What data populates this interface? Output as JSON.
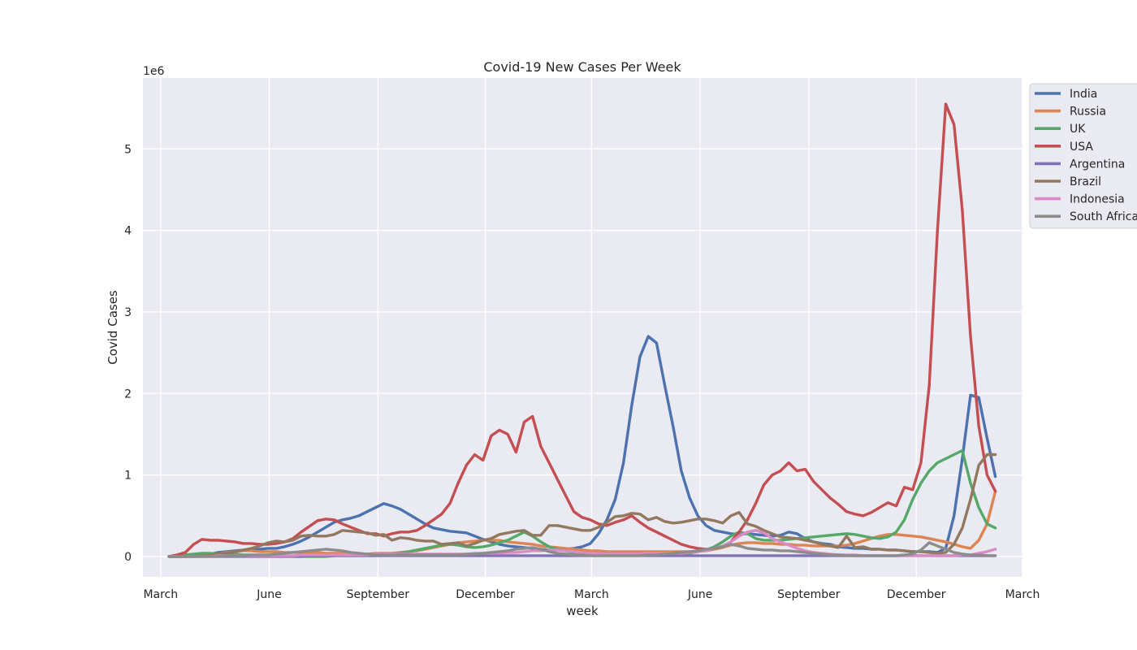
{
  "chart_data": {
    "type": "line",
    "title": "Covid-19 New Cases Per Week",
    "xlabel": "week",
    "ylabel": "Covid Cases",
    "y_multiplier": "1e6",
    "ylim": [
      -0.25,
      5.87
    ],
    "xlim": [
      "2020-02-15",
      "2022-03-01"
    ],
    "grid": true,
    "legend_position": "upper-right-outside",
    "x_ticks": [
      {
        "date": "2020-03-01",
        "label": "March"
      },
      {
        "date": "2020-06-01",
        "label": "June"
      },
      {
        "date": "2020-09-01",
        "label": "September"
      },
      {
        "date": "2020-12-01",
        "label": "December"
      },
      {
        "date": "2021-03-01",
        "label": "March"
      },
      {
        "date": "2021-06-01",
        "label": "June"
      },
      {
        "date": "2021-09-01",
        "label": "September"
      },
      {
        "date": "2021-12-01",
        "label": "December"
      },
      {
        "date": "2022-03-01",
        "label": "March"
      }
    ],
    "y_ticks": [
      0,
      1,
      2,
      3,
      4,
      5
    ],
    "x": [
      "2020-03-08",
      "2020-03-15",
      "2020-03-22",
      "2020-03-29",
      "2020-04-05",
      "2020-04-12",
      "2020-04-19",
      "2020-04-26",
      "2020-05-03",
      "2020-05-10",
      "2020-05-17",
      "2020-05-24",
      "2020-05-31",
      "2020-06-07",
      "2020-06-14",
      "2020-06-21",
      "2020-06-28",
      "2020-07-05",
      "2020-07-12",
      "2020-07-19",
      "2020-07-26",
      "2020-08-02",
      "2020-08-09",
      "2020-08-16",
      "2020-08-23",
      "2020-08-30",
      "2020-09-06",
      "2020-09-13",
      "2020-09-20",
      "2020-09-27",
      "2020-10-04",
      "2020-10-11",
      "2020-10-18",
      "2020-10-25",
      "2020-11-01",
      "2020-11-08",
      "2020-11-15",
      "2020-11-22",
      "2020-11-29",
      "2020-12-06",
      "2020-12-13",
      "2020-12-20",
      "2020-12-27",
      "2021-01-03",
      "2021-01-10",
      "2021-01-17",
      "2021-01-24",
      "2021-01-31",
      "2021-02-07",
      "2021-02-14",
      "2021-02-21",
      "2021-02-28",
      "2021-03-07",
      "2021-03-14",
      "2021-03-21",
      "2021-03-28",
      "2021-04-04",
      "2021-04-11",
      "2021-04-18",
      "2021-04-25",
      "2021-05-02",
      "2021-05-09",
      "2021-05-16",
      "2021-05-23",
      "2021-05-30",
      "2021-06-06",
      "2021-06-13",
      "2021-06-20",
      "2021-06-27",
      "2021-07-04",
      "2021-07-11",
      "2021-07-18",
      "2021-07-25",
      "2021-08-01",
      "2021-08-08",
      "2021-08-15",
      "2021-08-22",
      "2021-08-29",
      "2021-09-05",
      "2021-09-12",
      "2021-09-19",
      "2021-09-26",
      "2021-10-03",
      "2021-10-10",
      "2021-10-17",
      "2021-10-24",
      "2021-10-31",
      "2021-11-07",
      "2021-11-14",
      "2021-11-21",
      "2021-11-28",
      "2021-12-05",
      "2021-12-12",
      "2021-12-19",
      "2021-12-26",
      "2022-01-02",
      "2022-01-09",
      "2022-01-16",
      "2022-01-23",
      "2022-01-30",
      "2022-02-06"
    ],
    "series": [
      {
        "name": "India",
        "color": "#4c72b0",
        "values": [
          0.0,
          0.0,
          0.0,
          0.01,
          0.02,
          0.03,
          0.05,
          0.06,
          0.07,
          0.08,
          0.09,
          0.09,
          0.1,
          0.1,
          0.12,
          0.15,
          0.19,
          0.24,
          0.3,
          0.36,
          0.42,
          0.45,
          0.47,
          0.5,
          0.55,
          0.6,
          0.65,
          0.62,
          0.58,
          0.52,
          0.46,
          0.4,
          0.35,
          0.33,
          0.31,
          0.3,
          0.29,
          0.25,
          0.21,
          0.18,
          0.15,
          0.13,
          0.12,
          0.11,
          0.1,
          0.09,
          0.08,
          0.08,
          0.09,
          0.1,
          0.12,
          0.16,
          0.28,
          0.45,
          0.7,
          1.15,
          1.85,
          2.45,
          2.7,
          2.62,
          2.1,
          1.6,
          1.05,
          0.72,
          0.5,
          0.38,
          0.32,
          0.3,
          0.28,
          0.27,
          0.28,
          0.27,
          0.26,
          0.25,
          0.26,
          0.3,
          0.28,
          0.22,
          0.18,
          0.16,
          0.15,
          0.12,
          0.11,
          0.1,
          0.1,
          0.09,
          0.09,
          0.08,
          0.08,
          0.07,
          0.06,
          0.06,
          0.06,
          0.05,
          0.1,
          0.5,
          1.2,
          1.98,
          1.95,
          1.45,
          0.98
        ]
      },
      {
        "name": "Russia",
        "color": "#dd8452",
        "values": [
          0.0,
          0.0,
          0.0,
          0.0,
          0.01,
          0.02,
          0.03,
          0.05,
          0.06,
          0.07,
          0.07,
          0.06,
          0.06,
          0.06,
          0.05,
          0.05,
          0.05,
          0.05,
          0.05,
          0.04,
          0.04,
          0.04,
          0.03,
          0.03,
          0.03,
          0.04,
          0.04,
          0.04,
          0.05,
          0.06,
          0.07,
          0.09,
          0.11,
          0.13,
          0.15,
          0.17,
          0.18,
          0.19,
          0.2,
          0.2,
          0.2,
          0.18,
          0.17,
          0.16,
          0.15,
          0.13,
          0.12,
          0.11,
          0.1,
          0.09,
          0.08,
          0.07,
          0.07,
          0.06,
          0.06,
          0.06,
          0.06,
          0.06,
          0.06,
          0.06,
          0.06,
          0.06,
          0.06,
          0.06,
          0.06,
          0.07,
          0.09,
          0.11,
          0.14,
          0.16,
          0.17,
          0.17,
          0.16,
          0.16,
          0.15,
          0.15,
          0.14,
          0.14,
          0.13,
          0.13,
          0.13,
          0.13,
          0.14,
          0.16,
          0.19,
          0.22,
          0.25,
          0.27,
          0.27,
          0.26,
          0.25,
          0.24,
          0.22,
          0.2,
          0.18,
          0.15,
          0.12,
          0.1,
          0.2,
          0.4,
          0.8
        ]
      },
      {
        "name": "UK",
        "color": "#55a868",
        "values": [
          0.0,
          0.01,
          0.02,
          0.03,
          0.04,
          0.04,
          0.03,
          0.03,
          0.03,
          0.02,
          0.02,
          0.01,
          0.01,
          0.01,
          0.01,
          0.0,
          0.0,
          0.0,
          0.0,
          0.0,
          0.01,
          0.01,
          0.01,
          0.01,
          0.01,
          0.01,
          0.02,
          0.03,
          0.04,
          0.06,
          0.08,
          0.1,
          0.12,
          0.14,
          0.15,
          0.14,
          0.12,
          0.11,
          0.12,
          0.14,
          0.17,
          0.2,
          0.25,
          0.3,
          0.25,
          0.18,
          0.12,
          0.09,
          0.07,
          0.05,
          0.04,
          0.03,
          0.03,
          0.03,
          0.03,
          0.02,
          0.02,
          0.02,
          0.02,
          0.02,
          0.02,
          0.02,
          0.03,
          0.04,
          0.06,
          0.08,
          0.12,
          0.18,
          0.25,
          0.3,
          0.28,
          0.22,
          0.2,
          0.2,
          0.2,
          0.21,
          0.22,
          0.23,
          0.24,
          0.25,
          0.26,
          0.27,
          0.28,
          0.27,
          0.25,
          0.23,
          0.22,
          0.24,
          0.3,
          0.45,
          0.7,
          0.9,
          1.05,
          1.15,
          1.2,
          1.25,
          1.3,
          0.9,
          0.6,
          0.4,
          0.35
        ]
      },
      {
        "name": "USA",
        "color": "#c44e52",
        "values": [
          0.0,
          0.02,
          0.05,
          0.15,
          0.21,
          0.2,
          0.2,
          0.19,
          0.18,
          0.16,
          0.16,
          0.15,
          0.15,
          0.16,
          0.18,
          0.22,
          0.3,
          0.37,
          0.44,
          0.46,
          0.45,
          0.4,
          0.36,
          0.32,
          0.28,
          0.28,
          0.25,
          0.28,
          0.3,
          0.3,
          0.32,
          0.38,
          0.45,
          0.52,
          0.65,
          0.9,
          1.12,
          1.25,
          1.18,
          1.48,
          1.55,
          1.5,
          1.28,
          1.65,
          1.72,
          1.35,
          1.15,
          0.95,
          0.75,
          0.55,
          0.48,
          0.45,
          0.4,
          0.38,
          0.42,
          0.45,
          0.5,
          0.42,
          0.35,
          0.3,
          0.25,
          0.2,
          0.15,
          0.12,
          0.1,
          0.09,
          0.1,
          0.12,
          0.18,
          0.3,
          0.45,
          0.65,
          0.88,
          1.0,
          1.05,
          1.15,
          1.05,
          1.07,
          0.92,
          0.82,
          0.72,
          0.64,
          0.55,
          0.52,
          0.5,
          0.54,
          0.6,
          0.66,
          0.62,
          0.85,
          0.82,
          1.15,
          2.1,
          4.0,
          5.55,
          5.3,
          4.25,
          2.7,
          1.6,
          1.0,
          0.8
        ]
      },
      {
        "name": "Argentina",
        "color": "#8172b3",
        "values": [
          0.0,
          0.0,
          0.0,
          0.0,
          0.0,
          0.0,
          0.0,
          0.0,
          0.0,
          0.0,
          0.0,
          0.0,
          0.0,
          0.0,
          0.0,
          0.0,
          0.0,
          0.01,
          0.01,
          0.01,
          0.01,
          0.01,
          0.01,
          0.01,
          0.01,
          0.01,
          0.01,
          0.01,
          0.01,
          0.01,
          0.01,
          0.01,
          0.01,
          0.01,
          0.01,
          0.01,
          0.01,
          0.01,
          0.01,
          0.01,
          0.01,
          0.01,
          0.01,
          0.01,
          0.01,
          0.01,
          0.01,
          0.01,
          0.01,
          0.01,
          0.01,
          0.01,
          0.01,
          0.01,
          0.01,
          0.01,
          0.01,
          0.01,
          0.01,
          0.01,
          0.01,
          0.01,
          0.01,
          0.01,
          0.01,
          0.01,
          0.01,
          0.01,
          0.01,
          0.01,
          0.01,
          0.01,
          0.01,
          0.01,
          0.01,
          0.01,
          0.01,
          0.01,
          0.01,
          0.01,
          0.01,
          0.01,
          0.01,
          0.01,
          0.01,
          0.01,
          0.01,
          0.01,
          0.01,
          0.01,
          0.01,
          0.01,
          0.01,
          0.01,
          0.01,
          0.01,
          0.01,
          0.01,
          0.01,
          0.01,
          0.01
        ]
      },
      {
        "name": "Brazil",
        "color": "#937860",
        "values": [
          0.0,
          0.0,
          0.0,
          0.0,
          0.01,
          0.02,
          0.03,
          0.04,
          0.06,
          0.08,
          0.1,
          0.13,
          0.17,
          0.19,
          0.18,
          0.2,
          0.25,
          0.26,
          0.25,
          0.25,
          0.27,
          0.32,
          0.31,
          0.3,
          0.29,
          0.26,
          0.27,
          0.2,
          0.23,
          0.22,
          0.2,
          0.19,
          0.19,
          0.15,
          0.16,
          0.17,
          0.13,
          0.16,
          0.2,
          0.22,
          0.27,
          0.29,
          0.31,
          0.32,
          0.26,
          0.26,
          0.38,
          0.38,
          0.36,
          0.34,
          0.32,
          0.32,
          0.36,
          0.42,
          0.49,
          0.5,
          0.53,
          0.52,
          0.45,
          0.48,
          0.43,
          0.41,
          0.42,
          0.44,
          0.46,
          0.46,
          0.44,
          0.41,
          0.5,
          0.54,
          0.4,
          0.37,
          0.32,
          0.28,
          0.24,
          0.23,
          0.22,
          0.2,
          0.18,
          0.15,
          0.13,
          0.11,
          0.25,
          0.11,
          0.12,
          0.09,
          0.09,
          0.08,
          0.08,
          0.07,
          0.06,
          0.06,
          0.05,
          0.04,
          0.05,
          0.15,
          0.35,
          0.7,
          1.12,
          1.25,
          1.25
        ]
      },
      {
        "name": "Indonesia",
        "color": "#da8bc3",
        "values": [
          0.0,
          0.0,
          0.0,
          0.0,
          0.0,
          0.0,
          0.01,
          0.01,
          0.01,
          0.01,
          0.01,
          0.01,
          0.01,
          0.01,
          0.01,
          0.01,
          0.02,
          0.02,
          0.02,
          0.02,
          0.02,
          0.02,
          0.02,
          0.02,
          0.02,
          0.03,
          0.03,
          0.03,
          0.03,
          0.03,
          0.03,
          0.03,
          0.03,
          0.03,
          0.03,
          0.03,
          0.03,
          0.04,
          0.04,
          0.04,
          0.04,
          0.05,
          0.05,
          0.06,
          0.07,
          0.07,
          0.08,
          0.08,
          0.07,
          0.06,
          0.05,
          0.04,
          0.04,
          0.03,
          0.03,
          0.03,
          0.03,
          0.03,
          0.04,
          0.04,
          0.04,
          0.04,
          0.04,
          0.05,
          0.06,
          0.07,
          0.1,
          0.13,
          0.18,
          0.25,
          0.3,
          0.32,
          0.29,
          0.22,
          0.18,
          0.14,
          0.1,
          0.07,
          0.05,
          0.04,
          0.03,
          0.02,
          0.02,
          0.02,
          0.01,
          0.01,
          0.01,
          0.01,
          0.01,
          0.01,
          0.01,
          0.01,
          0.01,
          0.01,
          0.01,
          0.01,
          0.02,
          0.02,
          0.04,
          0.06,
          0.09
        ]
      },
      {
        "name": "South Africa",
        "color": "#8c8c8c",
        "values": [
          0.0,
          0.0,
          0.0,
          0.0,
          0.0,
          0.0,
          0.0,
          0.01,
          0.01,
          0.01,
          0.02,
          0.02,
          0.02,
          0.03,
          0.04,
          0.05,
          0.06,
          0.07,
          0.08,
          0.09,
          0.08,
          0.07,
          0.05,
          0.04,
          0.03,
          0.02,
          0.02,
          0.02,
          0.02,
          0.02,
          0.02,
          0.02,
          0.02,
          0.02,
          0.02,
          0.02,
          0.03,
          0.03,
          0.04,
          0.05,
          0.06,
          0.07,
          0.09,
          0.1,
          0.11,
          0.09,
          0.06,
          0.04,
          0.03,
          0.02,
          0.02,
          0.01,
          0.01,
          0.01,
          0.01,
          0.01,
          0.01,
          0.01,
          0.02,
          0.02,
          0.03,
          0.04,
          0.05,
          0.06,
          0.07,
          0.09,
          0.1,
          0.12,
          0.15,
          0.13,
          0.1,
          0.09,
          0.08,
          0.08,
          0.07,
          0.07,
          0.06,
          0.05,
          0.04,
          0.03,
          0.02,
          0.02,
          0.01,
          0.01,
          0.01,
          0.01,
          0.01,
          0.01,
          0.01,
          0.02,
          0.03,
          0.08,
          0.17,
          0.13,
          0.09,
          0.05,
          0.03,
          0.02,
          0.02,
          0.01,
          0.01
        ]
      }
    ]
  }
}
